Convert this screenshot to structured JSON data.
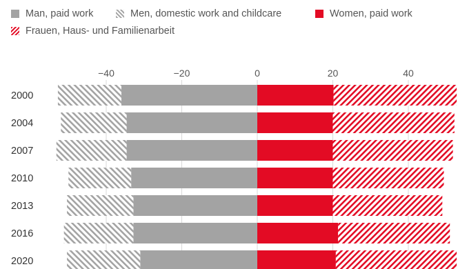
{
  "legend": {
    "men_paid": "Man, paid work",
    "men_domestic": "Men, domestic work and childcare",
    "women_paid": "Women, paid work",
    "women_domestic": "Frauen, Haus- und Familienarbeit"
  },
  "colors": {
    "men_paid": "#a3a3a3",
    "men_domestic": "#a3a3a3",
    "women_paid": "#e30b24",
    "women_domestic": "#e30b24",
    "grid": "#d9d9d9"
  },
  "chart_data": {
    "type": "bar",
    "orientation": "horizontal",
    "stacked": true,
    "categories": [
      "2000",
      "2004",
      "2007",
      "2010",
      "2013",
      "2016",
      "2020"
    ],
    "series": [
      {
        "name": "Man, paid work",
        "side": "left",
        "pattern": "solid",
        "values": [
          -36.0,
          -34.6,
          -34.6,
          -33.4,
          -32.8,
          -32.8,
          -31.0
        ]
      },
      {
        "name": "Men, domestic work and childcare",
        "side": "left",
        "pattern": "hatched",
        "values": [
          -16.8,
          -17.4,
          -18.6,
          -16.6,
          -17.6,
          -18.4,
          -19.4
        ]
      },
      {
        "name": "Women, paid work",
        "side": "right",
        "pattern": "solid",
        "values": [
          20.2,
          20.0,
          20.0,
          20.0,
          20.0,
          21.4,
          20.8
        ]
      },
      {
        "name": "Frauen, Haus- und Familienarbeit",
        "side": "right",
        "pattern": "hatched",
        "values": [
          32.6,
          32.2,
          31.8,
          29.4,
          29.0,
          29.6,
          32.0
        ]
      }
    ],
    "xlim": [
      -53,
      52
    ],
    "xticks": [
      -40,
      -20,
      0,
      20,
      40
    ],
    "xtick_labels": [
      "−40",
      "−20",
      "0",
      "20",
      "40"
    ],
    "xaxis_position": "top",
    "grid": true,
    "legend_position": "top-left"
  }
}
